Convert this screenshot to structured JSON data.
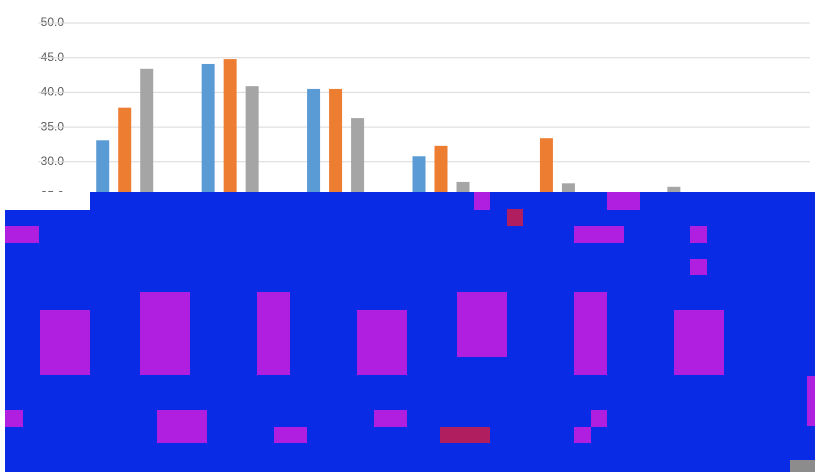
{
  "chart_data": {
    "type": "bar",
    "categories": [
      null,
      null,
      null,
      null,
      null,
      null,
      null
    ],
    "series": [
      {
        "color": "#5b9bd5",
        "values": [
          33.1,
          44.1,
          40.5,
          30.8,
          null,
          null,
          null
        ]
      },
      {
        "color": "#ed7d31",
        "values": [
          37.8,
          44.8,
          40.5,
          32.3,
          33.4,
          null,
          null
        ]
      },
      {
        "color": "#a5a5a5",
        "values": [
          43.4,
          40.9,
          36.3,
          27.1,
          26.9,
          26.4,
          null
        ]
      }
    ],
    "ylim": [
      0,
      50
    ],
    "yticks": [
      {
        "value": 25,
        "label": "25.0"
      },
      {
        "value": 30,
        "label": "30.0"
      },
      {
        "value": 35,
        "label": "35.0"
      },
      {
        "value": 40,
        "label": "40.0"
      },
      {
        "value": 45,
        "label": "45.0"
      },
      {
        "value": 50,
        "label": "50.0"
      }
    ],
    "grid": true
  }
}
